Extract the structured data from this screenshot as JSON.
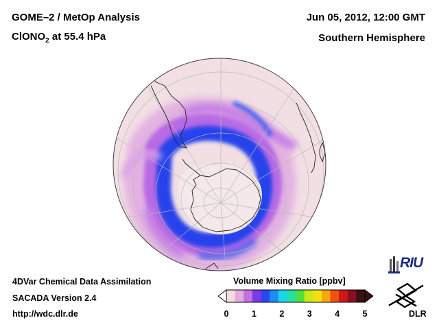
{
  "header": {
    "title_line1": "GOME–2 / MetOp Analysis",
    "title_species_main": "ClONO",
    "title_species_sub": "2",
    "title_species_rest": " at 55.4 hPa",
    "date": "Jun 05, 2012, 12:00 GMT",
    "region": "Southern Hemisphere"
  },
  "footer": {
    "line1": "4DVar Chemical Data Assimilation",
    "line2": "SACADA Version 2.4",
    "line3": "http://wdc.dlr.de"
  },
  "colorbar": {
    "title": "Volume Mixing Ratio [ppbv]",
    "ticks": [
      "0",
      "1",
      "2",
      "3",
      "4",
      "5"
    ],
    "colors": [
      "#f4dcdc",
      "#e6a8e0",
      "#c470e0",
      "#7a3ce8",
      "#2a48f0",
      "#1c8cf4",
      "#18d6f0",
      "#26e0a0",
      "#50e040",
      "#c8e818",
      "#f4e010",
      "#f4a810",
      "#f05010",
      "#d01818",
      "#8a1020",
      "#3a1010"
    ]
  },
  "logos": {
    "riu": "RIU",
    "dlr": "DLR"
  },
  "map": {
    "ocean_color": "#f1dfe3",
    "coast_color": "#202020",
    "grid_color": "#b8b8b8"
  }
}
